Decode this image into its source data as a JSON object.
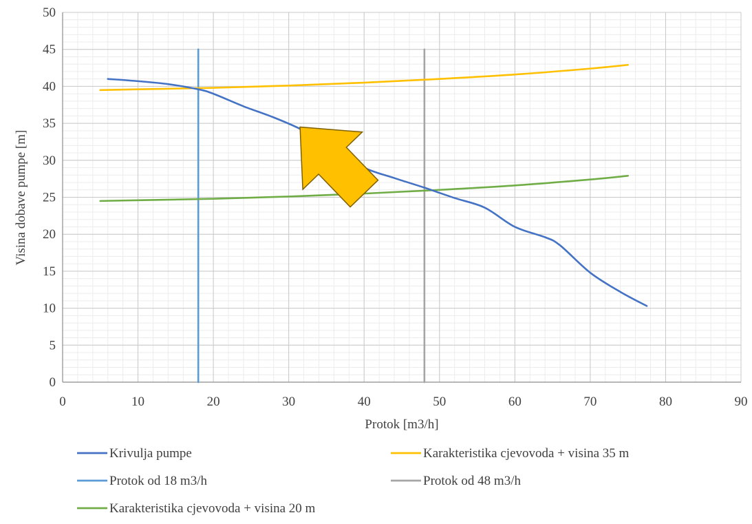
{
  "chart_data": {
    "type": "line",
    "title": "",
    "xlabel": "Protok  [m3/h]",
    "ylabel": "Visina dobave pumpe [m]",
    "xlim": [
      0,
      90
    ],
    "ylim": [
      0,
      50
    ],
    "xticks": [
      0,
      10,
      20,
      30,
      40,
      50,
      60,
      70,
      80,
      90
    ],
    "yticks": [
      0,
      5,
      10,
      15,
      20,
      25,
      30,
      35,
      40,
      45,
      50
    ],
    "grid": true,
    "legend_position": "bottom",
    "series": [
      {
        "name": "Krivulja pumpe",
        "color": "#4472c4",
        "x": [
          6,
          10,
          14,
          18,
          20,
          24,
          28,
          32,
          36,
          40,
          44,
          48,
          52,
          56,
          60,
          64,
          66,
          70,
          74,
          77.5
        ],
        "y": [
          41,
          40.7,
          40.3,
          39.6,
          39,
          37.3,
          35.8,
          34,
          31.5,
          29,
          27.6,
          26.3,
          24.9,
          23.6,
          21,
          19.6,
          18.5,
          14.8,
          12.2,
          10.3
        ]
      },
      {
        "name": "Karakteristika cjevovoda + visina 35 m",
        "color": "#ffc000",
        "x": [
          5,
          10,
          20,
          30,
          40,
          50,
          60,
          70,
          75
        ],
        "y": [
          39.5,
          39.6,
          39.8,
          40.1,
          40.5,
          41,
          41.6,
          42.4,
          42.9
        ]
      },
      {
        "name": "Protok od 18 m3/h",
        "color": "#5b9bd5",
        "x": [
          18,
          18
        ],
        "y": [
          0,
          45
        ]
      },
      {
        "name": "Protok od 48 m3/h",
        "color": "#a5a5a5",
        "x": [
          48,
          48
        ],
        "y": [
          0,
          45
        ]
      },
      {
        "name": "Karakteristika cjevovoda + visina 20 m",
        "color": "#70ad47",
        "x": [
          5,
          10,
          20,
          30,
          40,
          50,
          60,
          70,
          75
        ],
        "y": [
          24.5,
          24.6,
          24.8,
          25.1,
          25.5,
          26,
          26.6,
          27.4,
          27.9
        ]
      }
    ],
    "annotations": [
      {
        "type": "arrow",
        "color": "#ffc000",
        "stroke": "#7f6000",
        "direction": "up-left",
        "tail": [
          40,
          25.5
        ],
        "head": [
          31.5,
          34.5
        ]
      }
    ]
  }
}
